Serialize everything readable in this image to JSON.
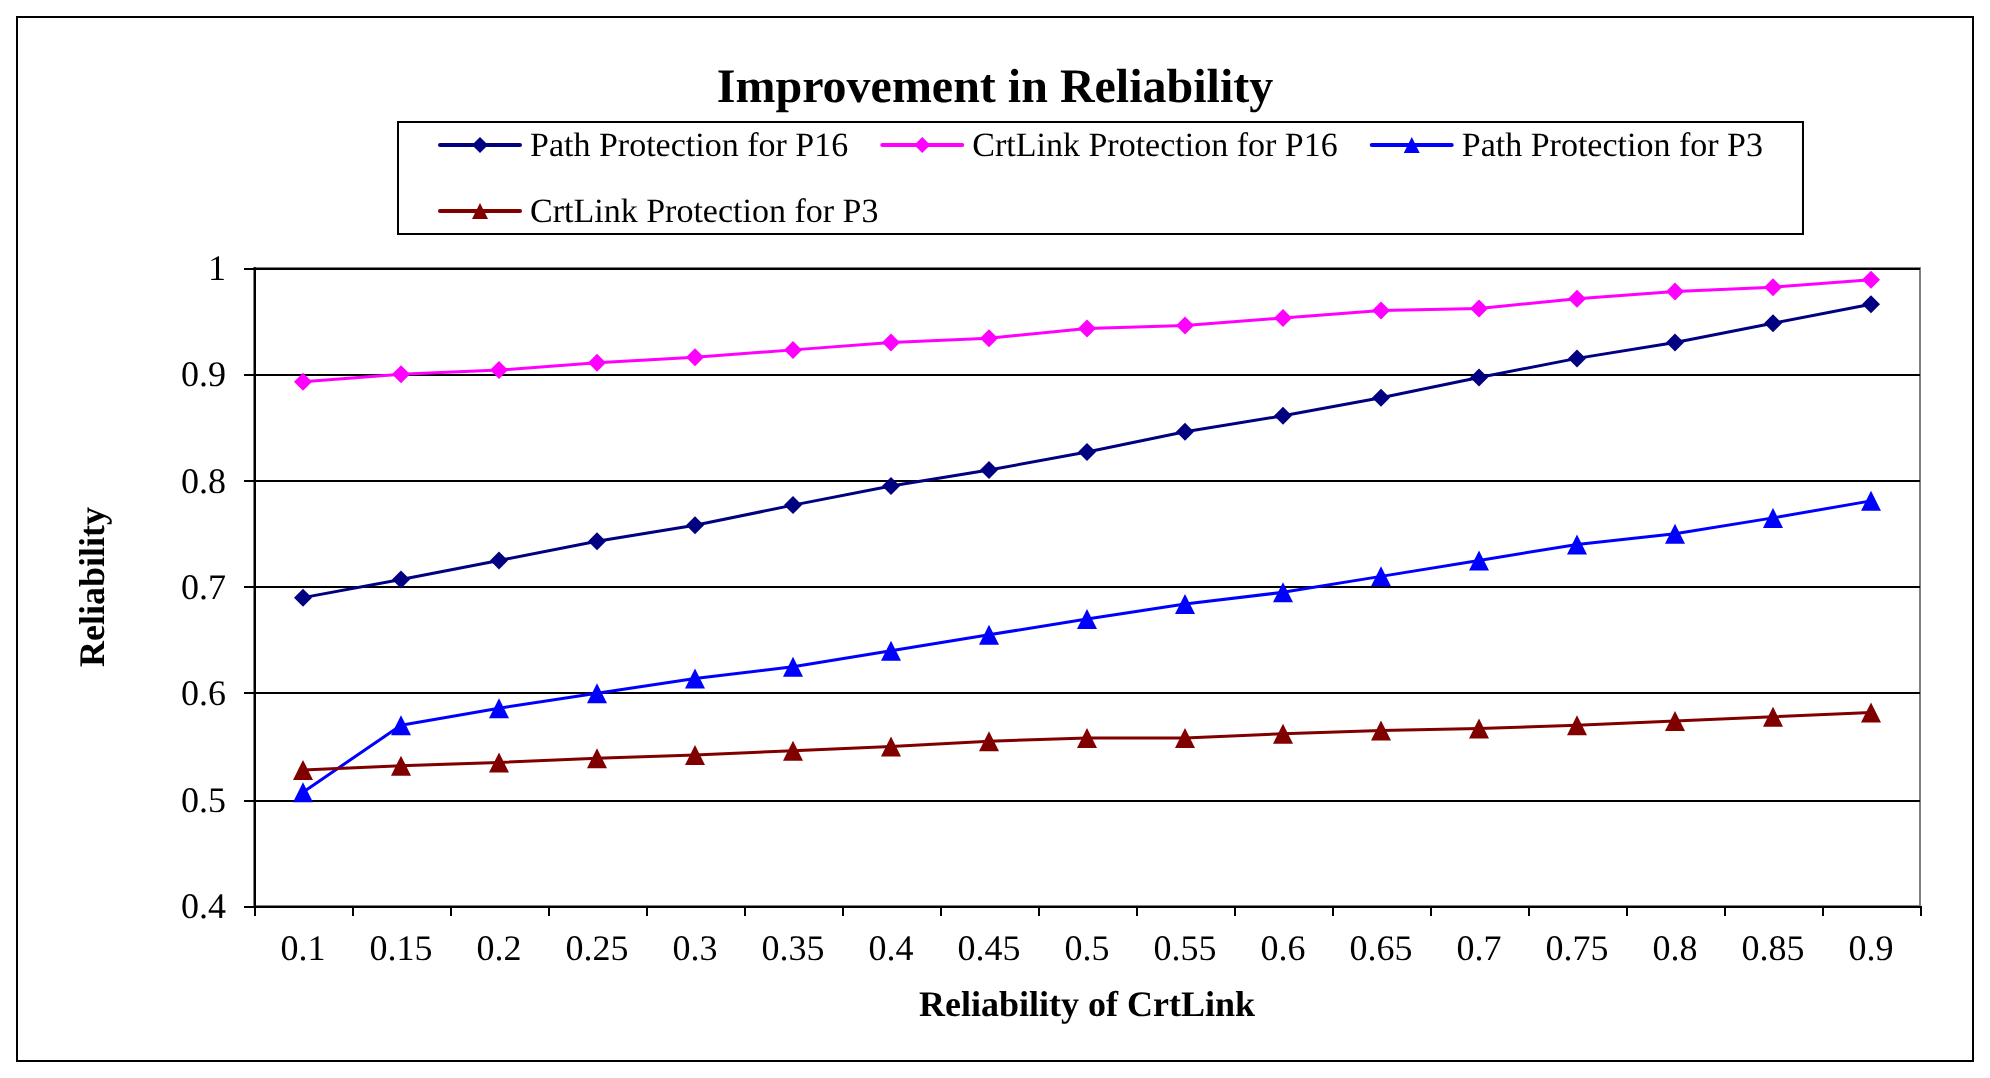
{
  "chart_data": {
    "type": "line",
    "title": "Improvement in Reliability",
    "xlabel": "Reliability of CrtLink",
    "ylabel": "Reliability",
    "categories": [
      "0.1",
      "0.15",
      "0.2",
      "0.25",
      "0.3",
      "0.35",
      "0.4",
      "0.45",
      "0.5",
      "0.55",
      "0.6",
      "0.65",
      "0.7",
      "0.75",
      "0.8",
      "0.85",
      "0.9"
    ],
    "series": [
      {
        "name": "Path Protection for P16",
        "color": "#000080",
        "marker": "diamond",
        "values": [
          0.69,
          0.707,
          0.725,
          0.743,
          0.758,
          0.777,
          0.795,
          0.81,
          0.827,
          0.846,
          0.861,
          0.878,
          0.897,
          0.915,
          0.93,
          0.948,
          0.966
        ]
      },
      {
        "name": "CrtLink Protection for P16",
        "color": "#ff00ff",
        "marker": "diamond",
        "values": [
          0.893,
          0.9,
          0.904,
          0.911,
          0.916,
          0.923,
          0.93,
          0.934,
          0.943,
          0.946,
          0.953,
          0.96,
          0.962,
          0.971,
          0.978,
          0.982,
          0.989
        ]
      },
      {
        "name": "Path Protection for P3",
        "color": "#0000ff",
        "marker": "triangle",
        "values": [
          0.507,
          0.57,
          0.586,
          0.6,
          0.614,
          0.625,
          0.64,
          0.655,
          0.67,
          0.684,
          0.695,
          0.71,
          0.725,
          0.74,
          0.75,
          0.765,
          0.781
        ]
      },
      {
        "name": "CrtLink Protection for P3",
        "color": "#800000",
        "marker": "triangle",
        "values": [
          0.528,
          0.532,
          0.535,
          0.539,
          0.542,
          0.546,
          0.55,
          0.555,
          0.558,
          0.558,
          0.562,
          0.565,
          0.567,
          0.57,
          0.574,
          0.578,
          0.582
        ]
      }
    ],
    "ylim": [
      0.4,
      1
    ],
    "yticks": [
      0.4,
      0.5,
      0.6,
      0.7,
      0.8,
      0.9,
      1
    ],
    "grid": "y",
    "legend": "top",
    "line_style": "solid"
  }
}
